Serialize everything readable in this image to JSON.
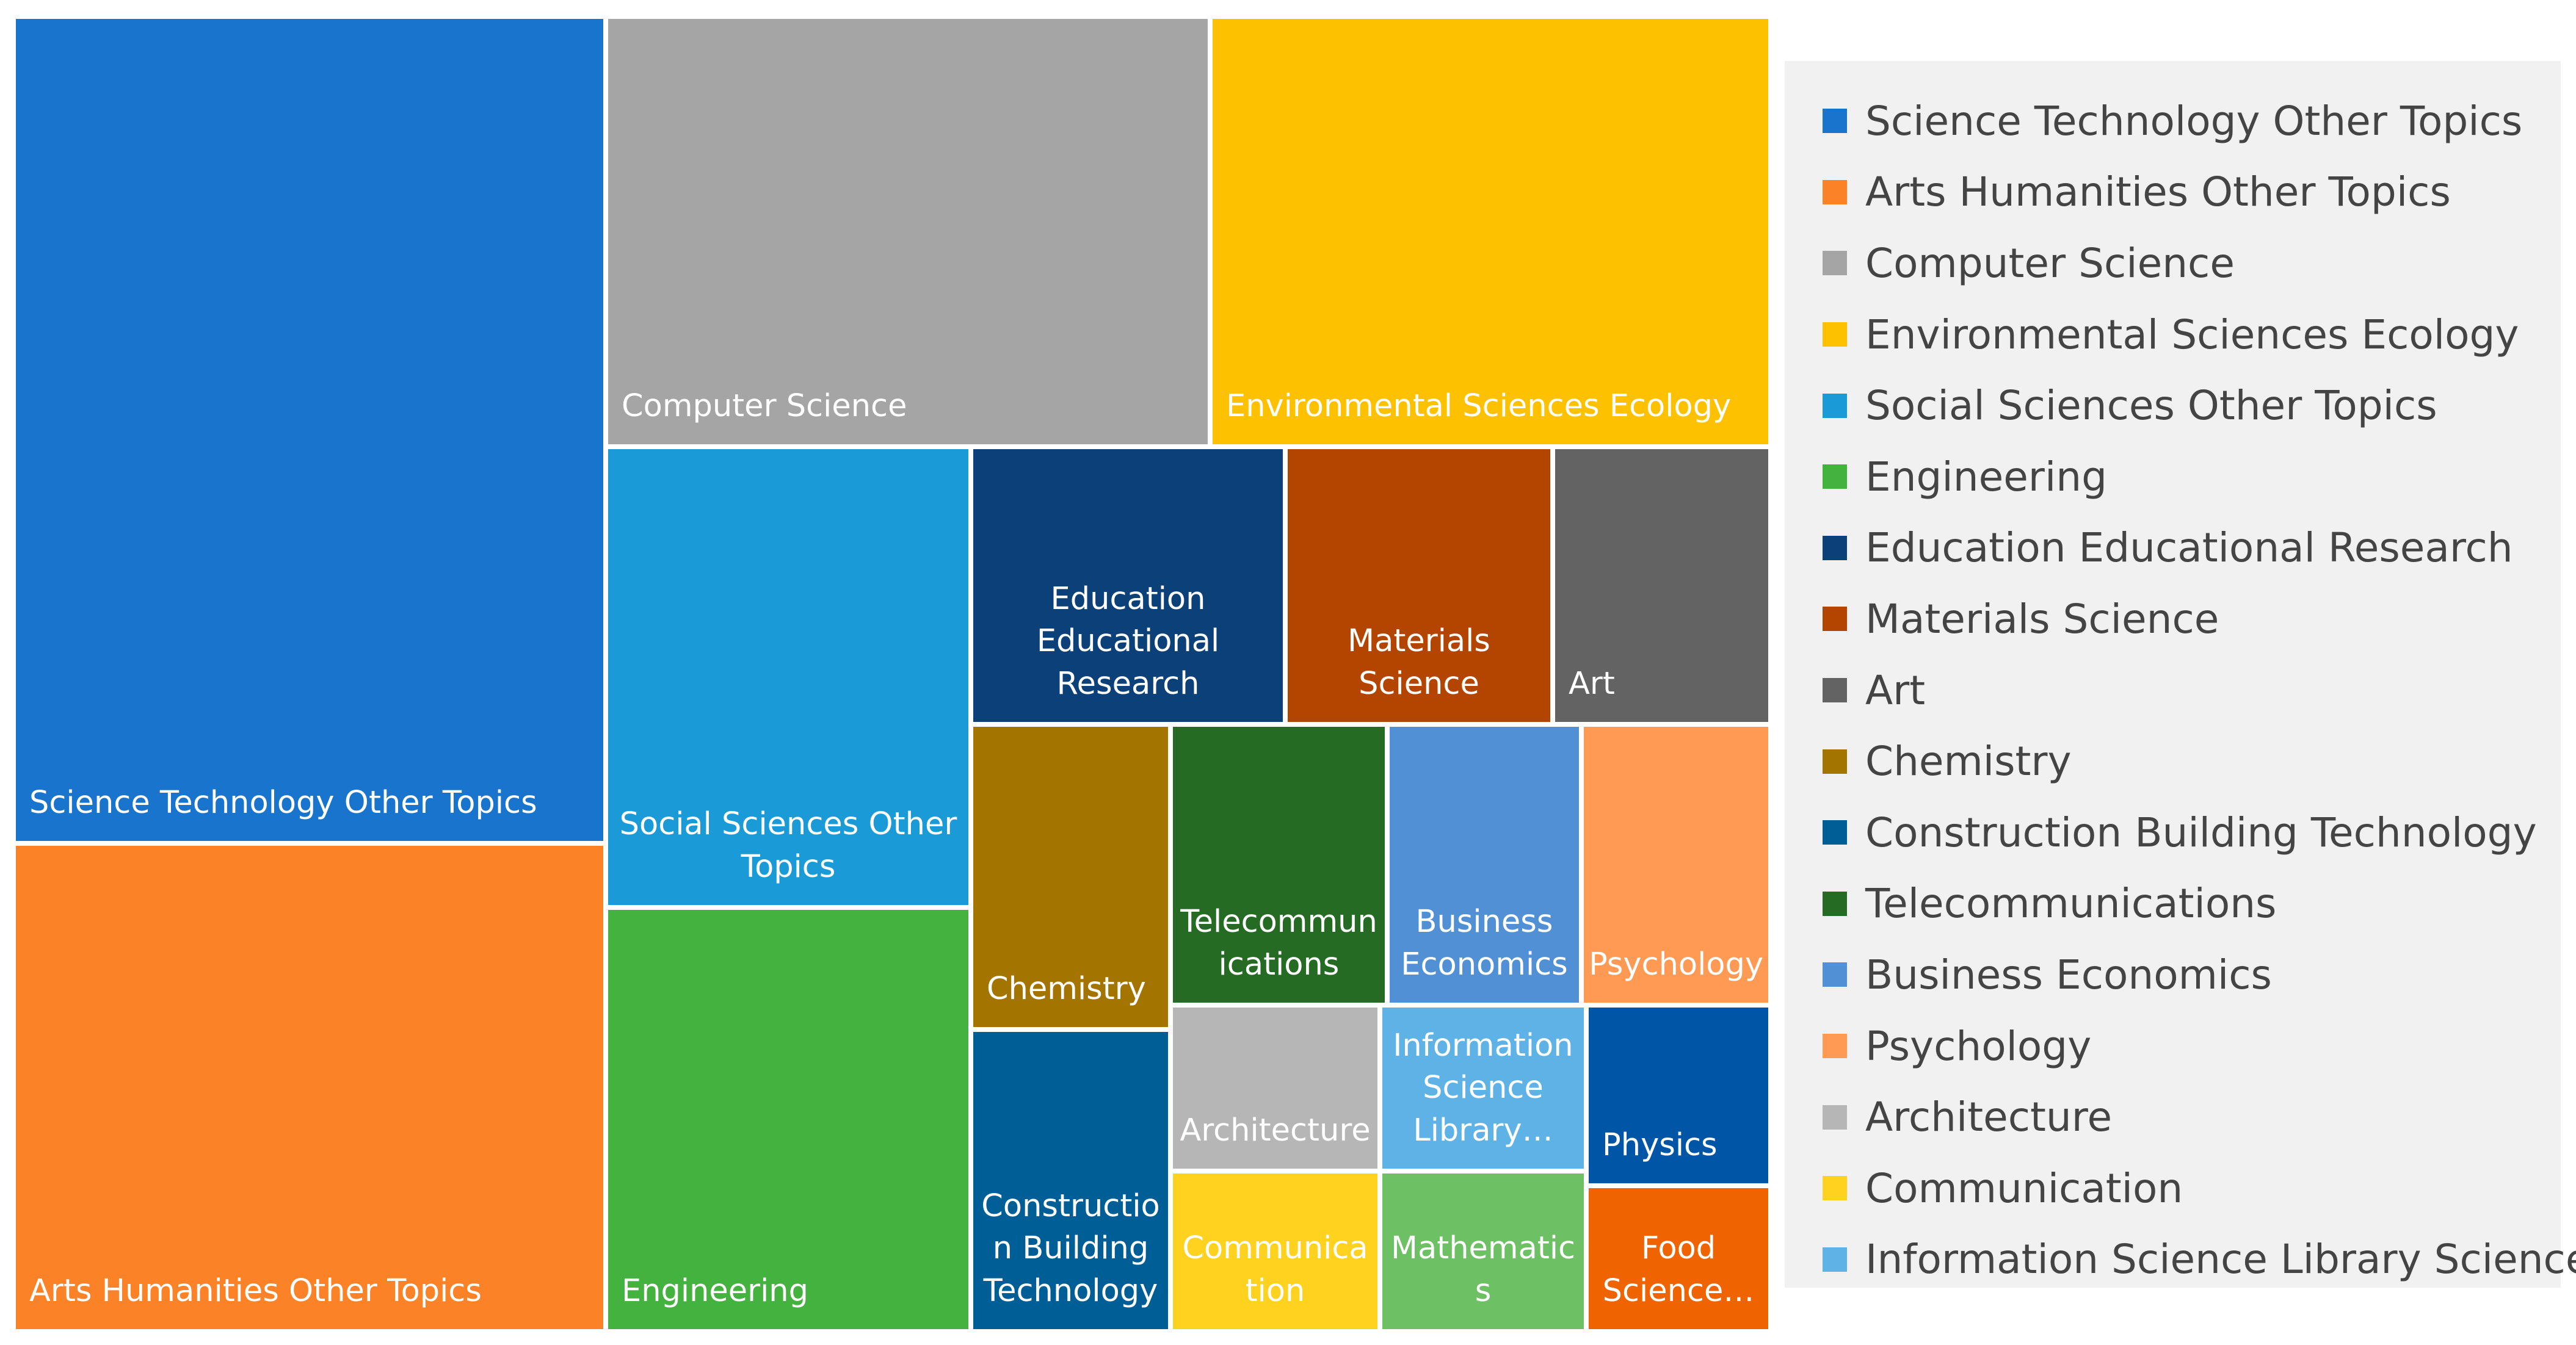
{
  "chart_data": {
    "type": "treemap",
    "title": "",
    "legend_position": "right",
    "items": [
      {
        "name": "Science Technology Other Topics",
        "label": "Science Technology Other Topics",
        "color": "#1874cd"
      },
      {
        "name": "Arts Humanities Other Topics",
        "label": "Arts Humanities Other Topics",
        "color": "#fc8227"
      },
      {
        "name": "Computer Science",
        "label": "Computer Science",
        "color": "#a5a5a5"
      },
      {
        "name": "Environmental Sciences Ecology",
        "label": "Environmental Sciences Ecology",
        "color": "#fec100"
      },
      {
        "name": "Social Sciences Other Topics",
        "label": "Social Sciences Other\nTopics",
        "color": "#1a9bd7"
      },
      {
        "name": "Engineering",
        "label": "Engineering",
        "color": "#44b23e"
      },
      {
        "name": "Education Educational Research",
        "label": "Education\nEducational\nResearch",
        "color": "#0c4079"
      },
      {
        "name": "Materials Science",
        "label": "Materials\nScience",
        "color": "#b34500"
      },
      {
        "name": "Art",
        "label": "Art",
        "color": "#636363"
      },
      {
        "name": "Chemistry",
        "label": "Chemistry",
        "color": "#a47400"
      },
      {
        "name": "Construction Building Technology",
        "label": "Constructio\nn Building\nTechnology",
        "color": "#005e96"
      },
      {
        "name": "Telecommunications",
        "label": "Telecommun\nications",
        "color": "#256b23"
      },
      {
        "name": "Business Economics",
        "label": "Business\nEconomics",
        "color": "#5290d6"
      },
      {
        "name": "Psychology",
        "label": "Psychology",
        "color": "#ff9a55"
      },
      {
        "name": "Architecture",
        "label": "Architecture",
        "color": "#b6b6b6"
      },
      {
        "name": "Communication",
        "label": "Communica\ntion",
        "color": "#ffd21f"
      },
      {
        "name": "Information Science Library Science",
        "label": "Information\nScience\nLibrary…",
        "color": "#5fb2e6"
      },
      {
        "name": "Physics",
        "label": "Physics",
        "color": "#0055a6"
      },
      {
        "name": "Mathematics",
        "label": "Mathematic\ns",
        "color": "#6ec064"
      },
      {
        "name": "Food Science Technology",
        "label": "Food\nScience…",
        "color": "#ef6400"
      }
    ],
    "legend": [
      {
        "label": "Science Technology Other Topics",
        "color": "#1874cd"
      },
      {
        "label": "Arts Humanities Other Topics",
        "color": "#fc8227"
      },
      {
        "label": "Computer Science",
        "color": "#a5a5a5"
      },
      {
        "label": "Environmental Sciences Ecology",
        "color": "#fec100"
      },
      {
        "label": "Social Sciences Other Topics",
        "color": "#1a9bd7"
      },
      {
        "label": "Engineering",
        "color": "#44b23e"
      },
      {
        "label": "Education Educational Research",
        "color": "#0c4079"
      },
      {
        "label": "Materials Science",
        "color": "#b34500"
      },
      {
        "label": "Art",
        "color": "#636363"
      },
      {
        "label": "Chemistry",
        "color": "#a47400"
      },
      {
        "label": "Construction Building Technology",
        "color": "#005e96"
      },
      {
        "label": "Telecommunications",
        "color": "#256b23"
      },
      {
        "label": "Business Economics",
        "color": "#5290d6"
      },
      {
        "label": "Psychology",
        "color": "#ff9a55"
      },
      {
        "label": "Architecture",
        "color": "#b6b6b6"
      },
      {
        "label": "Communication",
        "color": "#ffd21f"
      },
      {
        "label": "Information Science Library Science",
        "color": "#5fb2e6"
      }
    ]
  }
}
